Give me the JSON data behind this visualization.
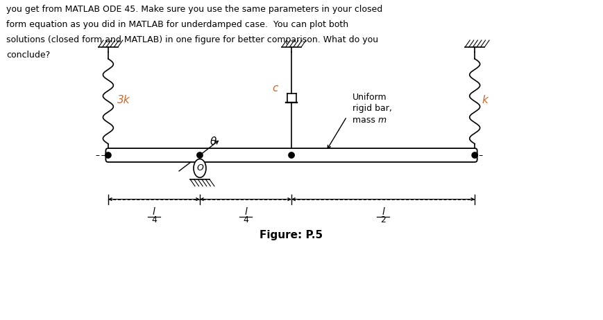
{
  "bg_color": "#ffffff",
  "text_color": "#000000",
  "orange_color": "#c8682c",
  "paragraph_lines": [
    "you get from MATLAB ODE 45. Make sure you use the same parameters in your closed",
    "form equation as you did in MATLAB for underdamped case.  You can plot both",
    "solutions (closed form and MATLAB) in one figure for better comparison. What do you",
    "conclude?"
  ],
  "figure_label": "Figure: P.5",
  "label_3k": "3k",
  "label_k": "k",
  "label_c": "c",
  "label_theta": "θ",
  "label_O": "O",
  "label_uniform_line1": "Uniform",
  "label_uniform_line2": "rigid bar,",
  "label_uniform_line3": "mass ",
  "label_m": "m",
  "dim_l4_1": "l",
  "dim_l4_2": "l",
  "dim_l2": "l",
  "dim_4_1": "4",
  "dim_4_2": "4",
  "dim_2": "2"
}
